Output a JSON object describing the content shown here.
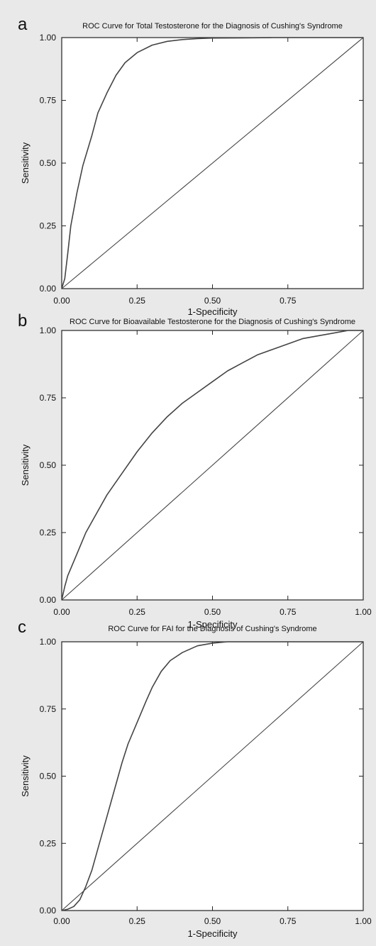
{
  "figure": {
    "background": "#e9e9e9",
    "plot_background": "#ffffff",
    "line_color": "#444444"
  },
  "chart_data": [
    {
      "panel_label": "a",
      "type": "line",
      "title": "ROC Curve for Total Testosterone for the Diagnosis of Cushing's Syndrome",
      "xlabel": "1-Specificity",
      "ylabel": "Sensitivity",
      "xlim": [
        0,
        1
      ],
      "ylim": [
        0,
        1
      ],
      "x_ticks": [
        "0.00",
        "0.25",
        "0.50",
        "0.75"
      ],
      "y_ticks": [
        "0.00",
        "0.25",
        "0.50",
        "0.75",
        "1.00"
      ],
      "grid": false,
      "series": [
        {
          "x": [
            0.0,
            0.01,
            0.02,
            0.03,
            0.05,
            0.07,
            0.1,
            0.12,
            0.15,
            0.18,
            0.21,
            0.25,
            0.3,
            0.35,
            0.4,
            0.45,
            0.5,
            0.6,
            0.7,
            0.85,
            1.0
          ],
          "y": [
            0.0,
            0.04,
            0.14,
            0.25,
            0.38,
            0.49,
            0.61,
            0.7,
            0.78,
            0.85,
            0.9,
            0.94,
            0.97,
            0.985,
            0.992,
            0.996,
            0.998,
            0.999,
            1.0,
            1.0,
            1.0
          ]
        },
        {
          "x": [
            0,
            1
          ],
          "y": [
            0,
            1
          ]
        }
      ]
    },
    {
      "panel_label": "b",
      "type": "line",
      "title": "ROC Curve for Bioavailable Testosterone for the Diagnosis of Cushing's Syndrome",
      "xlabel": "1-Specificity",
      "ylabel": "Sensitivity",
      "xlim": [
        0,
        1
      ],
      "ylim": [
        0,
        1
      ],
      "x_ticks": [
        "0.00",
        "0.25",
        "0.50",
        "0.75",
        "1.00"
      ],
      "y_ticks": [
        "0.00",
        "0.25",
        "0.50",
        "0.75",
        "1.00"
      ],
      "grid": false,
      "series": [
        {
          "x": [
            0.0,
            0.01,
            0.02,
            0.05,
            0.08,
            0.12,
            0.15,
            0.2,
            0.25,
            0.3,
            0.35,
            0.4,
            0.45,
            0.5,
            0.55,
            0.6,
            0.65,
            0.7,
            0.75,
            0.8,
            0.85,
            0.9,
            0.95,
            1.0
          ],
          "y": [
            0.0,
            0.05,
            0.09,
            0.17,
            0.25,
            0.33,
            0.39,
            0.47,
            0.55,
            0.62,
            0.68,
            0.73,
            0.77,
            0.81,
            0.85,
            0.88,
            0.91,
            0.93,
            0.95,
            0.97,
            0.98,
            0.99,
            1.0,
            1.0
          ]
        },
        {
          "x": [
            0,
            1
          ],
          "y": [
            0,
            1
          ]
        }
      ]
    },
    {
      "panel_label": "c",
      "type": "line",
      "title": "ROC Curve for FAI for the Diagnosis of Cushing's Syndrome",
      "xlabel": "1-Specificity",
      "ylabel": "Sensitivity",
      "xlim": [
        0,
        1
      ],
      "ylim": [
        0,
        1
      ],
      "x_ticks": [
        "0.00",
        "0.25",
        "0.50",
        "0.75",
        "1.00"
      ],
      "y_ticks": [
        "0.00",
        "0.25",
        "0.50",
        "0.75",
        "1.00"
      ],
      "grid": false,
      "series": [
        {
          "x": [
            0.0,
            0.02,
            0.04,
            0.06,
            0.08,
            0.1,
            0.12,
            0.15,
            0.18,
            0.2,
            0.22,
            0.25,
            0.28,
            0.3,
            0.33,
            0.36,
            0.4,
            0.45,
            0.5,
            0.55,
            0.6,
            0.7,
            0.8,
            1.0
          ],
          "y": [
            0.0,
            0.005,
            0.015,
            0.04,
            0.09,
            0.15,
            0.23,
            0.35,
            0.47,
            0.55,
            0.62,
            0.7,
            0.78,
            0.83,
            0.89,
            0.93,
            0.96,
            0.985,
            0.995,
            1.0,
            1.0,
            1.0,
            1.0,
            1.0
          ]
        },
        {
          "x": [
            0,
            1
          ],
          "y": [
            0,
            1
          ]
        }
      ]
    }
  ]
}
